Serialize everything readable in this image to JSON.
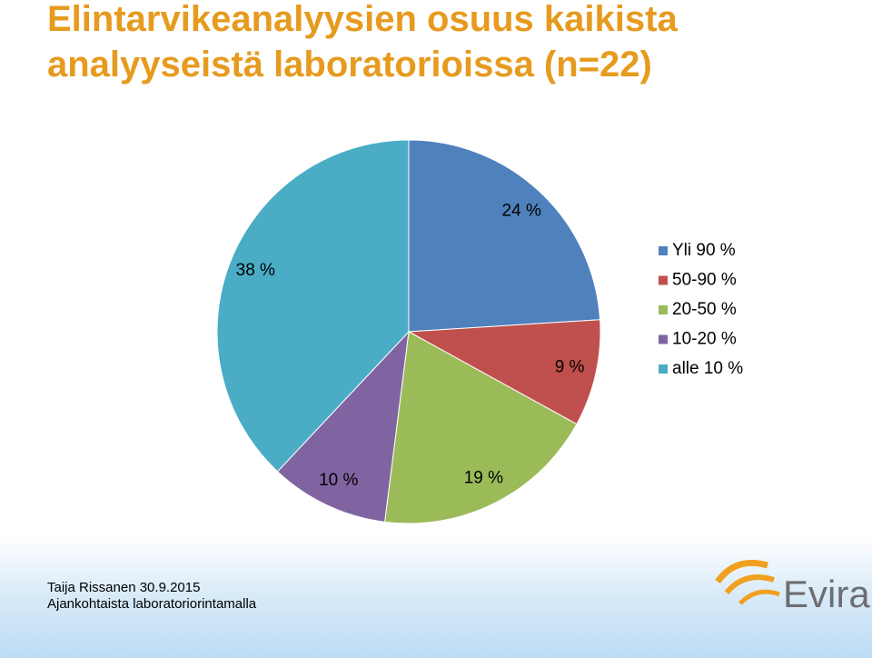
{
  "chart_data": {
    "type": "pie",
    "title": [
      "Elintarvikeanalyysien osuus kaikista",
      "analyyseistä laboratorioissa (n=22)"
    ],
    "categories": [
      "Yli 90 %",
      "50-90 %",
      "20-50 %",
      "10-20 %",
      "alle 10 %"
    ],
    "values": [
      24,
      9,
      19,
      10,
      38
    ],
    "value_labels": [
      "24 %",
      "9 %",
      "19 %",
      "10 %",
      "38 %"
    ],
    "colors": [
      "#4f81bd",
      "#c0504d",
      "#9bbb59",
      "#8064a2",
      "#4bacc6"
    ],
    "legend": "right"
  },
  "footer": {
    "lines": [
      "Taija Rissanen 30.9.2015",
      "Ajankohtaista laboratoriorintamalla"
    ],
    "logo": "Evira"
  }
}
